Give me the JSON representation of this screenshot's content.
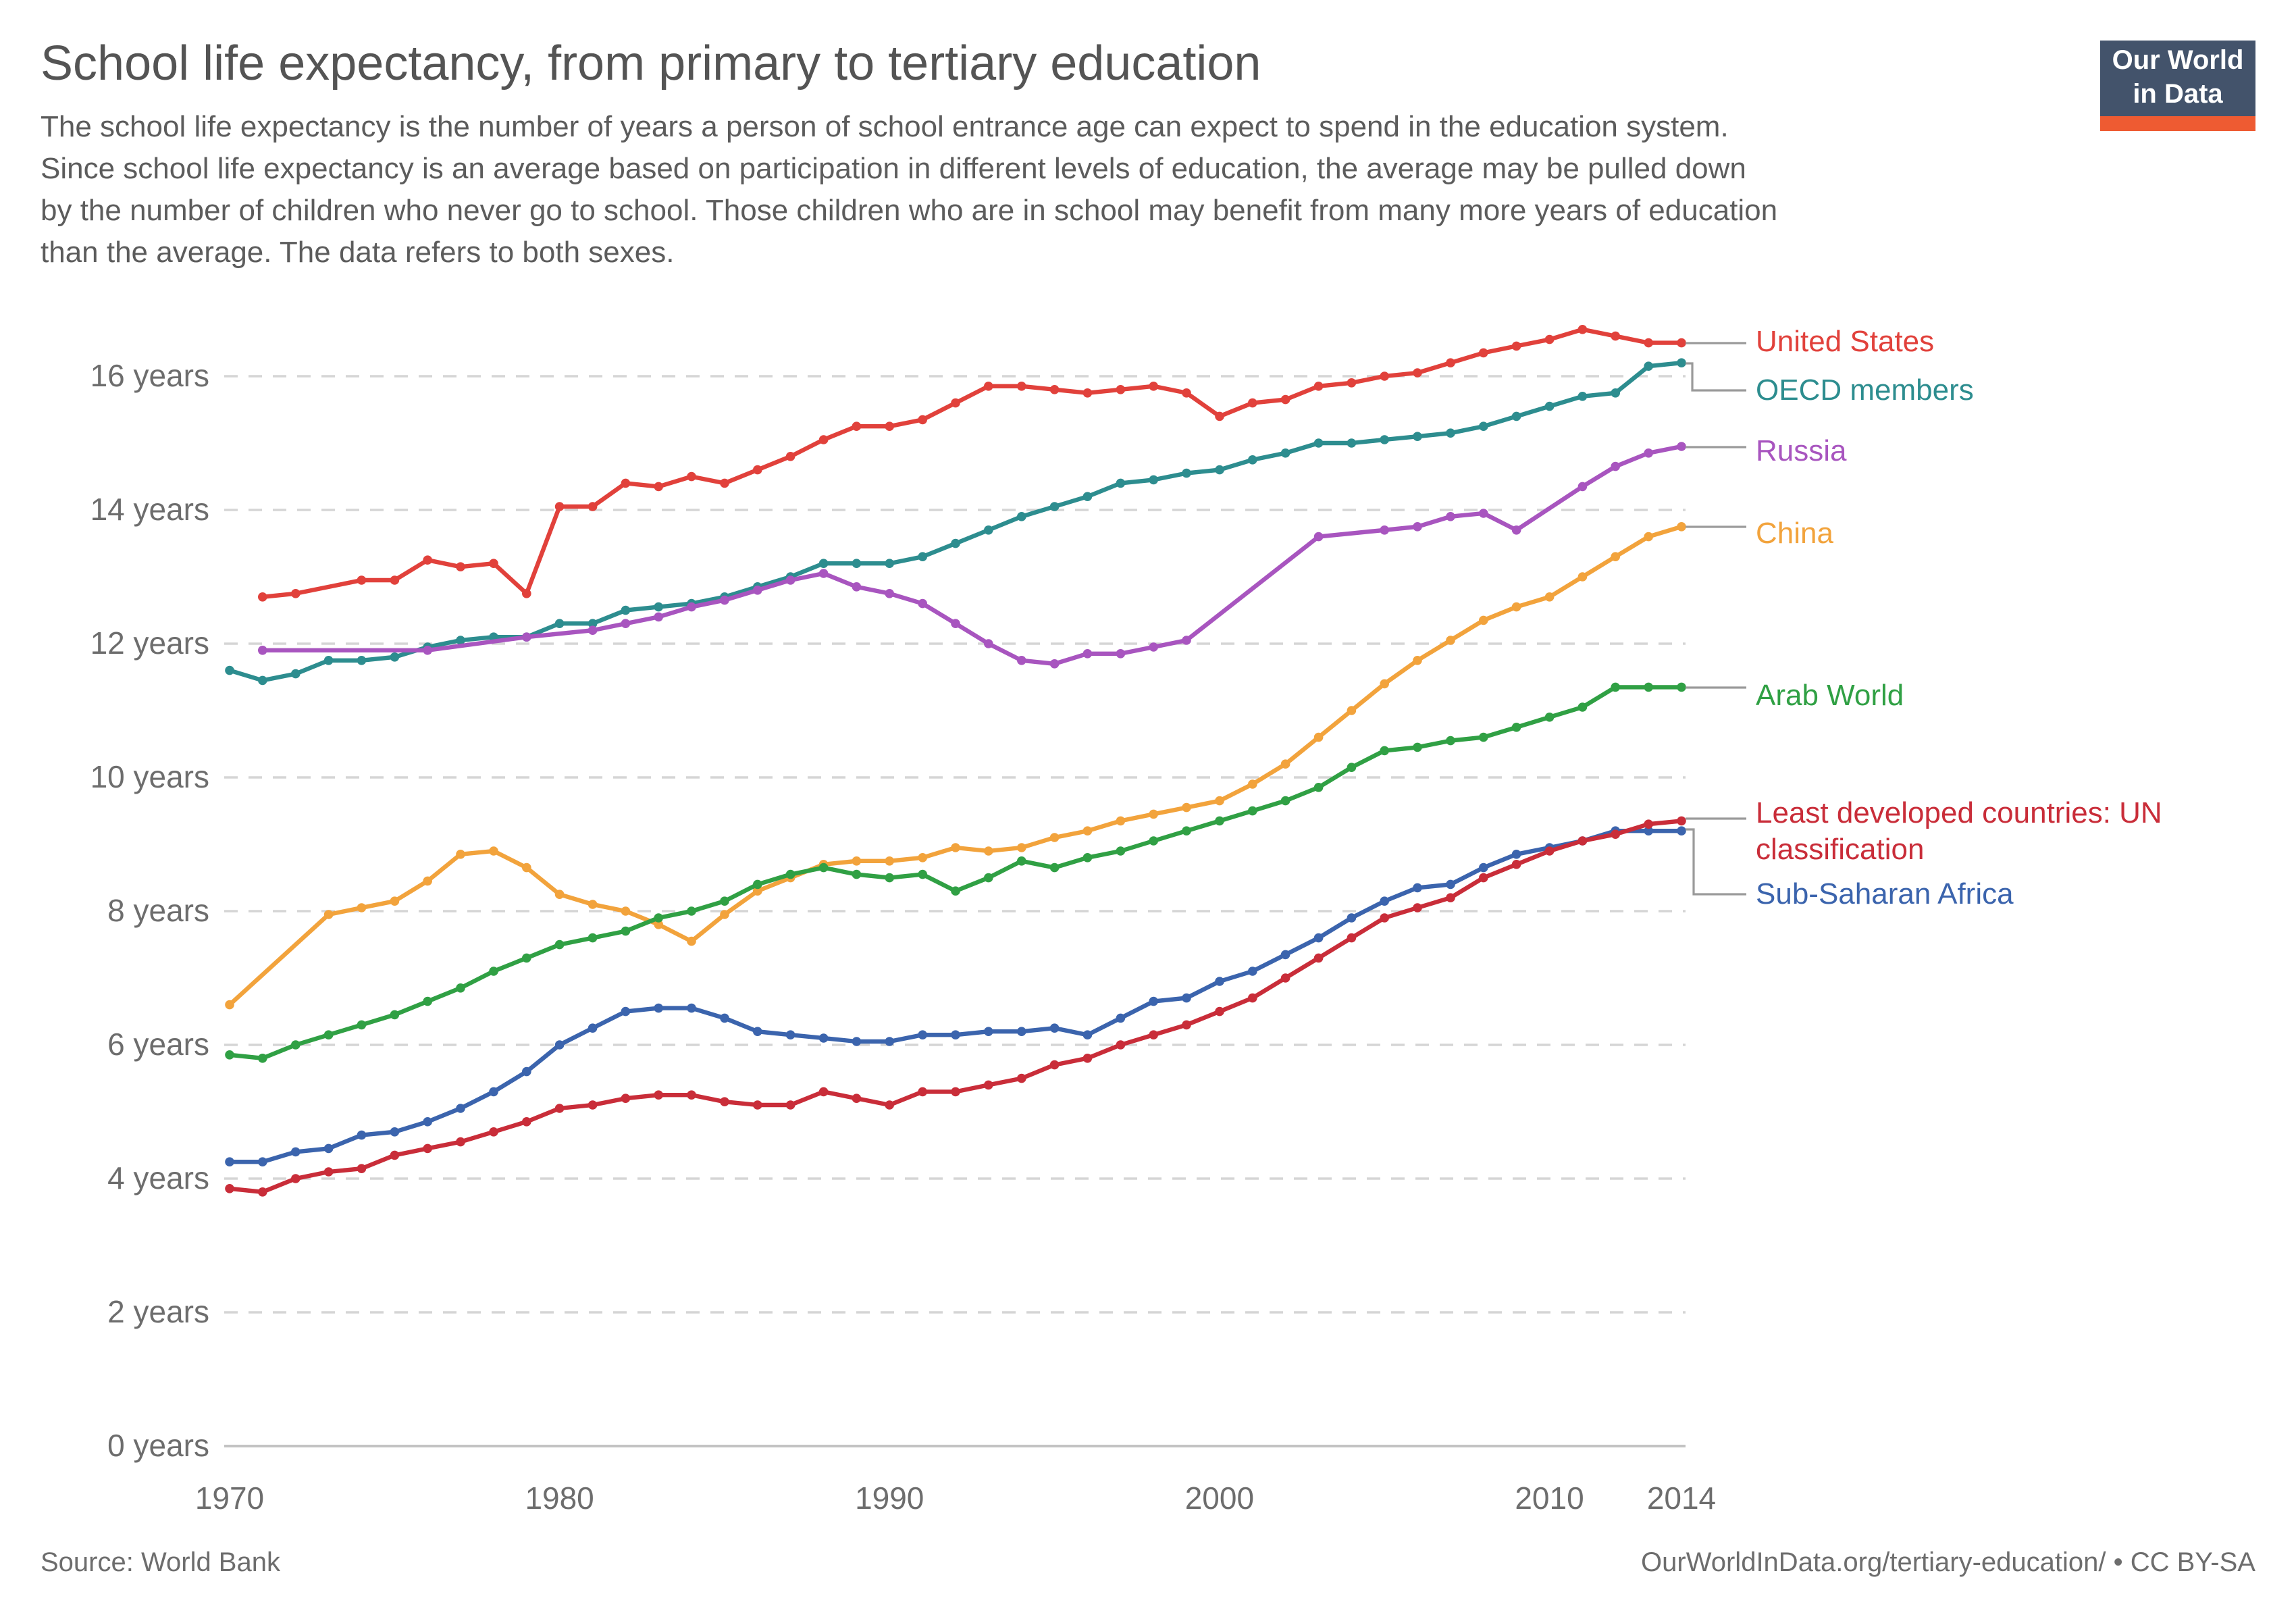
{
  "header": {
    "title": "School life expectancy, from primary to tertiary education",
    "subtitle": "The school life expectancy is the number of years a person of school entrance age can expect to spend in the education system. Since school life expectancy is an average based on participation in different levels of education, the average may be pulled down by the number of children who never go to school. Those children who are in school may benefit from many more years of education than the average. The data refers to both sexes.",
    "logo": {
      "line1": "Our World",
      "line2": "in Data",
      "bg_color": "#43536b",
      "bar_color": "#ee5b32"
    }
  },
  "footer": {
    "source": "Source: World Bank",
    "link": "OurWorldInData.org/tertiary-education/ • CC BY-SA"
  },
  "chart_data": {
    "type": "line",
    "title": "School life expectancy, from primary to tertiary education",
    "xlabel": "",
    "ylabel": "",
    "ylim": [
      0,
      16
    ],
    "grid": "horizontal dashed",
    "legend_position": "right",
    "years": [
      1970,
      1971,
      1972,
      1973,
      1974,
      1975,
      1976,
      1977,
      1978,
      1979,
      1980,
      1981,
      1982,
      1983,
      1984,
      1985,
      1986,
      1987,
      1988,
      1989,
      1990,
      1991,
      1992,
      1993,
      1994,
      1995,
      1996,
      1997,
      1998,
      1999,
      2000,
      2001,
      2002,
      2003,
      2004,
      2005,
      2006,
      2007,
      2008,
      2009,
      2010,
      2011,
      2012,
      2013,
      2014
    ],
    "x_ticks": [
      1970,
      1980,
      1990,
      2000,
      2010,
      2014
    ],
    "y_ticks": [
      {
        "value": 0,
        "label": "0 years"
      },
      {
        "value": 2,
        "label": "2 years"
      },
      {
        "value": 4,
        "label": "4 years"
      },
      {
        "value": 6,
        "label": "6 years"
      },
      {
        "value": 8,
        "label": "8 years"
      },
      {
        "value": 10,
        "label": "10 years"
      },
      {
        "value": 12,
        "label": "12 years"
      },
      {
        "value": 14,
        "label": "14 years"
      },
      {
        "value": 16,
        "label": "16 years"
      }
    ],
    "series": [
      {
        "name": "United States",
        "color": "#e1413b",
        "values": [
          null,
          12.7,
          12.75,
          null,
          12.95,
          12.95,
          13.25,
          13.15,
          13.2,
          12.75,
          14.05,
          14.05,
          14.4,
          14.35,
          14.5,
          14.4,
          14.6,
          14.8,
          15.05,
          15.25,
          15.25,
          15.35,
          15.6,
          15.85,
          15.85,
          15.8,
          15.75,
          15.8,
          15.85,
          15.75,
          15.4,
          15.6,
          15.65,
          15.85,
          15.9,
          16.0,
          16.05,
          16.2,
          16.35,
          16.45,
          16.55,
          16.7,
          16.6,
          16.5,
          16.5
        ]
      },
      {
        "name": "OECD members",
        "color": "#2d8d8f",
        "values": [
          11.6,
          11.45,
          11.55,
          11.75,
          11.75,
          11.8,
          11.95,
          12.05,
          12.1,
          12.1,
          12.3,
          12.3,
          12.5,
          12.55,
          12.6,
          12.7,
          12.85,
          13.0,
          13.2,
          13.2,
          13.2,
          13.3,
          13.5,
          13.7,
          13.9,
          14.05,
          14.2,
          14.4,
          14.45,
          14.55,
          14.6,
          14.75,
          14.85,
          15.0,
          15.0,
          15.05,
          15.1,
          15.15,
          15.25,
          15.4,
          15.55,
          15.7,
          15.75,
          16.15,
          16.2
        ]
      },
      {
        "name": "Russia",
        "color": "#a855bf",
        "values": [
          null,
          11.9,
          null,
          null,
          null,
          null,
          11.9,
          null,
          null,
          12.1,
          null,
          12.2,
          12.3,
          12.4,
          12.55,
          12.65,
          12.8,
          12.95,
          13.05,
          12.85,
          12.75,
          12.6,
          12.3,
          12.0,
          11.75,
          11.7,
          11.85,
          11.85,
          11.95,
          12.05,
          null,
          null,
          null,
          13.6,
          null,
          13.7,
          13.75,
          13.9,
          13.95,
          13.7,
          null,
          14.35,
          14.65,
          14.85,
          14.95
        ]
      },
      {
        "name": "China",
        "color": "#f2a33c",
        "values": [
          6.6,
          null,
          null,
          7.95,
          8.05,
          8.15,
          8.45,
          8.85,
          8.9,
          8.65,
          8.25,
          8.1,
          8.0,
          7.8,
          7.55,
          7.95,
          8.3,
          8.5,
          8.7,
          8.75,
          8.75,
          8.8,
          8.95,
          8.9,
          8.95,
          9.1,
          9.2,
          9.35,
          9.45,
          9.55,
          9.65,
          9.9,
          10.2,
          10.6,
          11.0,
          11.4,
          11.75,
          12.05,
          12.35,
          12.55,
          12.7,
          13.0,
          13.3,
          13.6,
          13.75
        ]
      },
      {
        "name": "Arab World",
        "color": "#30a044",
        "values": [
          5.85,
          5.8,
          6.0,
          6.15,
          6.3,
          6.45,
          6.65,
          6.85,
          7.1,
          7.3,
          7.5,
          7.6,
          7.7,
          7.9,
          8.0,
          8.15,
          8.4,
          8.55,
          8.65,
          8.55,
          8.5,
          8.55,
          8.3,
          8.5,
          8.75,
          8.65,
          8.8,
          8.9,
          9.05,
          9.2,
          9.35,
          9.5,
          9.65,
          9.85,
          10.15,
          10.4,
          10.45,
          10.55,
          10.6,
          10.75,
          10.9,
          11.05,
          11.35,
          11.35,
          11.35
        ]
      },
      {
        "name": "Least developed countries: UN classification",
        "color": "#c92d39",
        "values": [
          3.85,
          3.8,
          4.0,
          4.1,
          4.15,
          4.35,
          4.45,
          4.55,
          4.7,
          4.85,
          5.05,
          5.1,
          5.2,
          5.25,
          5.25,
          5.15,
          5.1,
          5.1,
          5.3,
          5.2,
          5.1,
          5.3,
          5.3,
          5.4,
          5.5,
          5.7,
          5.8,
          6.0,
          6.15,
          6.3,
          6.5,
          6.7,
          7.0,
          7.3,
          7.6,
          7.9,
          8.05,
          8.2,
          8.5,
          8.7,
          8.9,
          9.05,
          9.15,
          9.3,
          9.35
        ]
      },
      {
        "name": "Sub-Saharan Africa",
        "color": "#3b64ad",
        "values": [
          4.25,
          4.25,
          4.4,
          4.45,
          4.65,
          4.7,
          4.85,
          5.05,
          5.3,
          5.6,
          6.0,
          6.25,
          6.5,
          6.55,
          6.55,
          6.4,
          6.2,
          6.15,
          6.1,
          6.05,
          6.05,
          6.15,
          6.15,
          6.2,
          6.2,
          6.25,
          6.15,
          6.4,
          6.65,
          6.7,
          6.95,
          7.1,
          7.35,
          7.6,
          7.9,
          8.15,
          8.35,
          8.4,
          8.65,
          8.85,
          8.95,
          9.05,
          9.2,
          9.2,
          9.2
        ]
      }
    ]
  }
}
